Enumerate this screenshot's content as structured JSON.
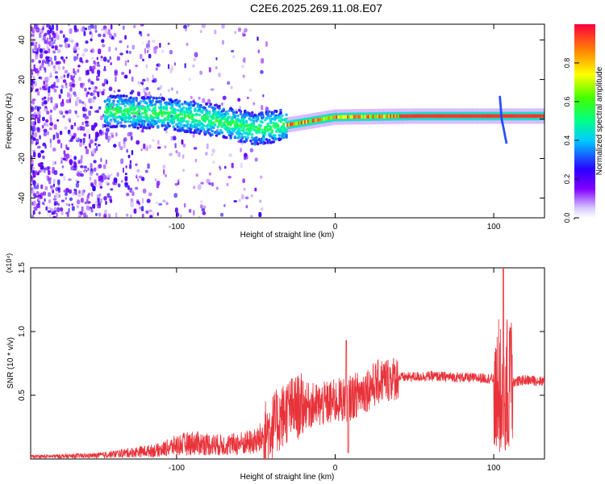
{
  "title": "C2E6.2025.269.11.08.E07",
  "colors": {
    "snr_line": "#e8333a",
    "axis": "#000000",
    "grid_tick": "#000000"
  },
  "chart_data": [
    {
      "type": "heatmap",
      "name": "spectrogram",
      "xlabel": "Height of straight line (km)",
      "ylabel": "Frequency (Hz)",
      "xlim": [
        -192,
        132
      ],
      "ylim": [
        -50,
        48
      ],
      "xticks": [
        -100,
        0,
        100
      ],
      "yticks": [
        -40,
        -20,
        0,
        20,
        40
      ],
      "colorbar": {
        "label": "Normalized spectral amplitude",
        "range": [
          0.0,
          1.0
        ],
        "ticks": [
          "0.0",
          "0.2",
          "0.4",
          "0.6",
          "0.8"
        ],
        "tick_values": [
          0.0,
          0.2,
          0.4,
          0.6,
          0.8
        ]
      },
      "ridge": [
        {
          "x": -140,
          "y": 4
        },
        {
          "x": -110,
          "y": 3
        },
        {
          "x": -80,
          "y": 0
        },
        {
          "x": -50,
          "y": -5
        },
        {
          "x": -30,
          "y": -3
        },
        {
          "x": 0,
          "y": 1
        },
        {
          "x": 50,
          "y": 1.5
        },
        {
          "x": 100,
          "y": 1.5
        },
        {
          "x": 132,
          "y": 1.5
        }
      ]
    },
    {
      "type": "line",
      "name": "snr",
      "xlabel": "Height of straight line (km)",
      "ylabel": "SNR (10 * v/v)",
      "y_multiplier": "(x10⁴)",
      "xlim": [
        -192,
        132
      ],
      "ylim": [
        0,
        1.5
      ],
      "xticks": [
        -100,
        0,
        100
      ],
      "yticks": [
        0.5,
        1.0,
        1.5
      ],
      "ytick_labels": [
        "0.5",
        "1.0",
        "1.5"
      ],
      "envelope": [
        {
          "x": -192,
          "y": 0.02
        },
        {
          "x": -150,
          "y": 0.03
        },
        {
          "x": -110,
          "y": 0.08
        },
        {
          "x": -100,
          "y": 0.12
        },
        {
          "x": -90,
          "y": 0.14
        },
        {
          "x": -70,
          "y": 0.12
        },
        {
          "x": -50,
          "y": 0.15
        },
        {
          "x": -40,
          "y": 0.25
        },
        {
          "x": -30,
          "y": 0.38
        },
        {
          "x": -20,
          "y": 0.42
        },
        {
          "x": -10,
          "y": 0.42
        },
        {
          "x": 0,
          "y": 0.45
        },
        {
          "x": 10,
          "y": 0.48
        },
        {
          "x": 20,
          "y": 0.55
        },
        {
          "x": 30,
          "y": 0.62
        },
        {
          "x": 40,
          "y": 0.64
        },
        {
          "x": 60,
          "y": 0.65
        },
        {
          "x": 80,
          "y": 0.64
        },
        {
          "x": 100,
          "y": 0.63
        },
        {
          "x": 110,
          "y": 0.6
        },
        {
          "x": 120,
          "y": 0.62
        },
        {
          "x": 132,
          "y": 0.61
        }
      ],
      "spikes": [
        {
          "x": 7,
          "y": 0.93
        },
        {
          "x": 8,
          "y": 0.05
        },
        {
          "x": 104,
          "y": 1.5
        },
        {
          "x": 106,
          "y": 0.05
        },
        {
          "x": 110,
          "y": 1.03
        }
      ]
    }
  ]
}
